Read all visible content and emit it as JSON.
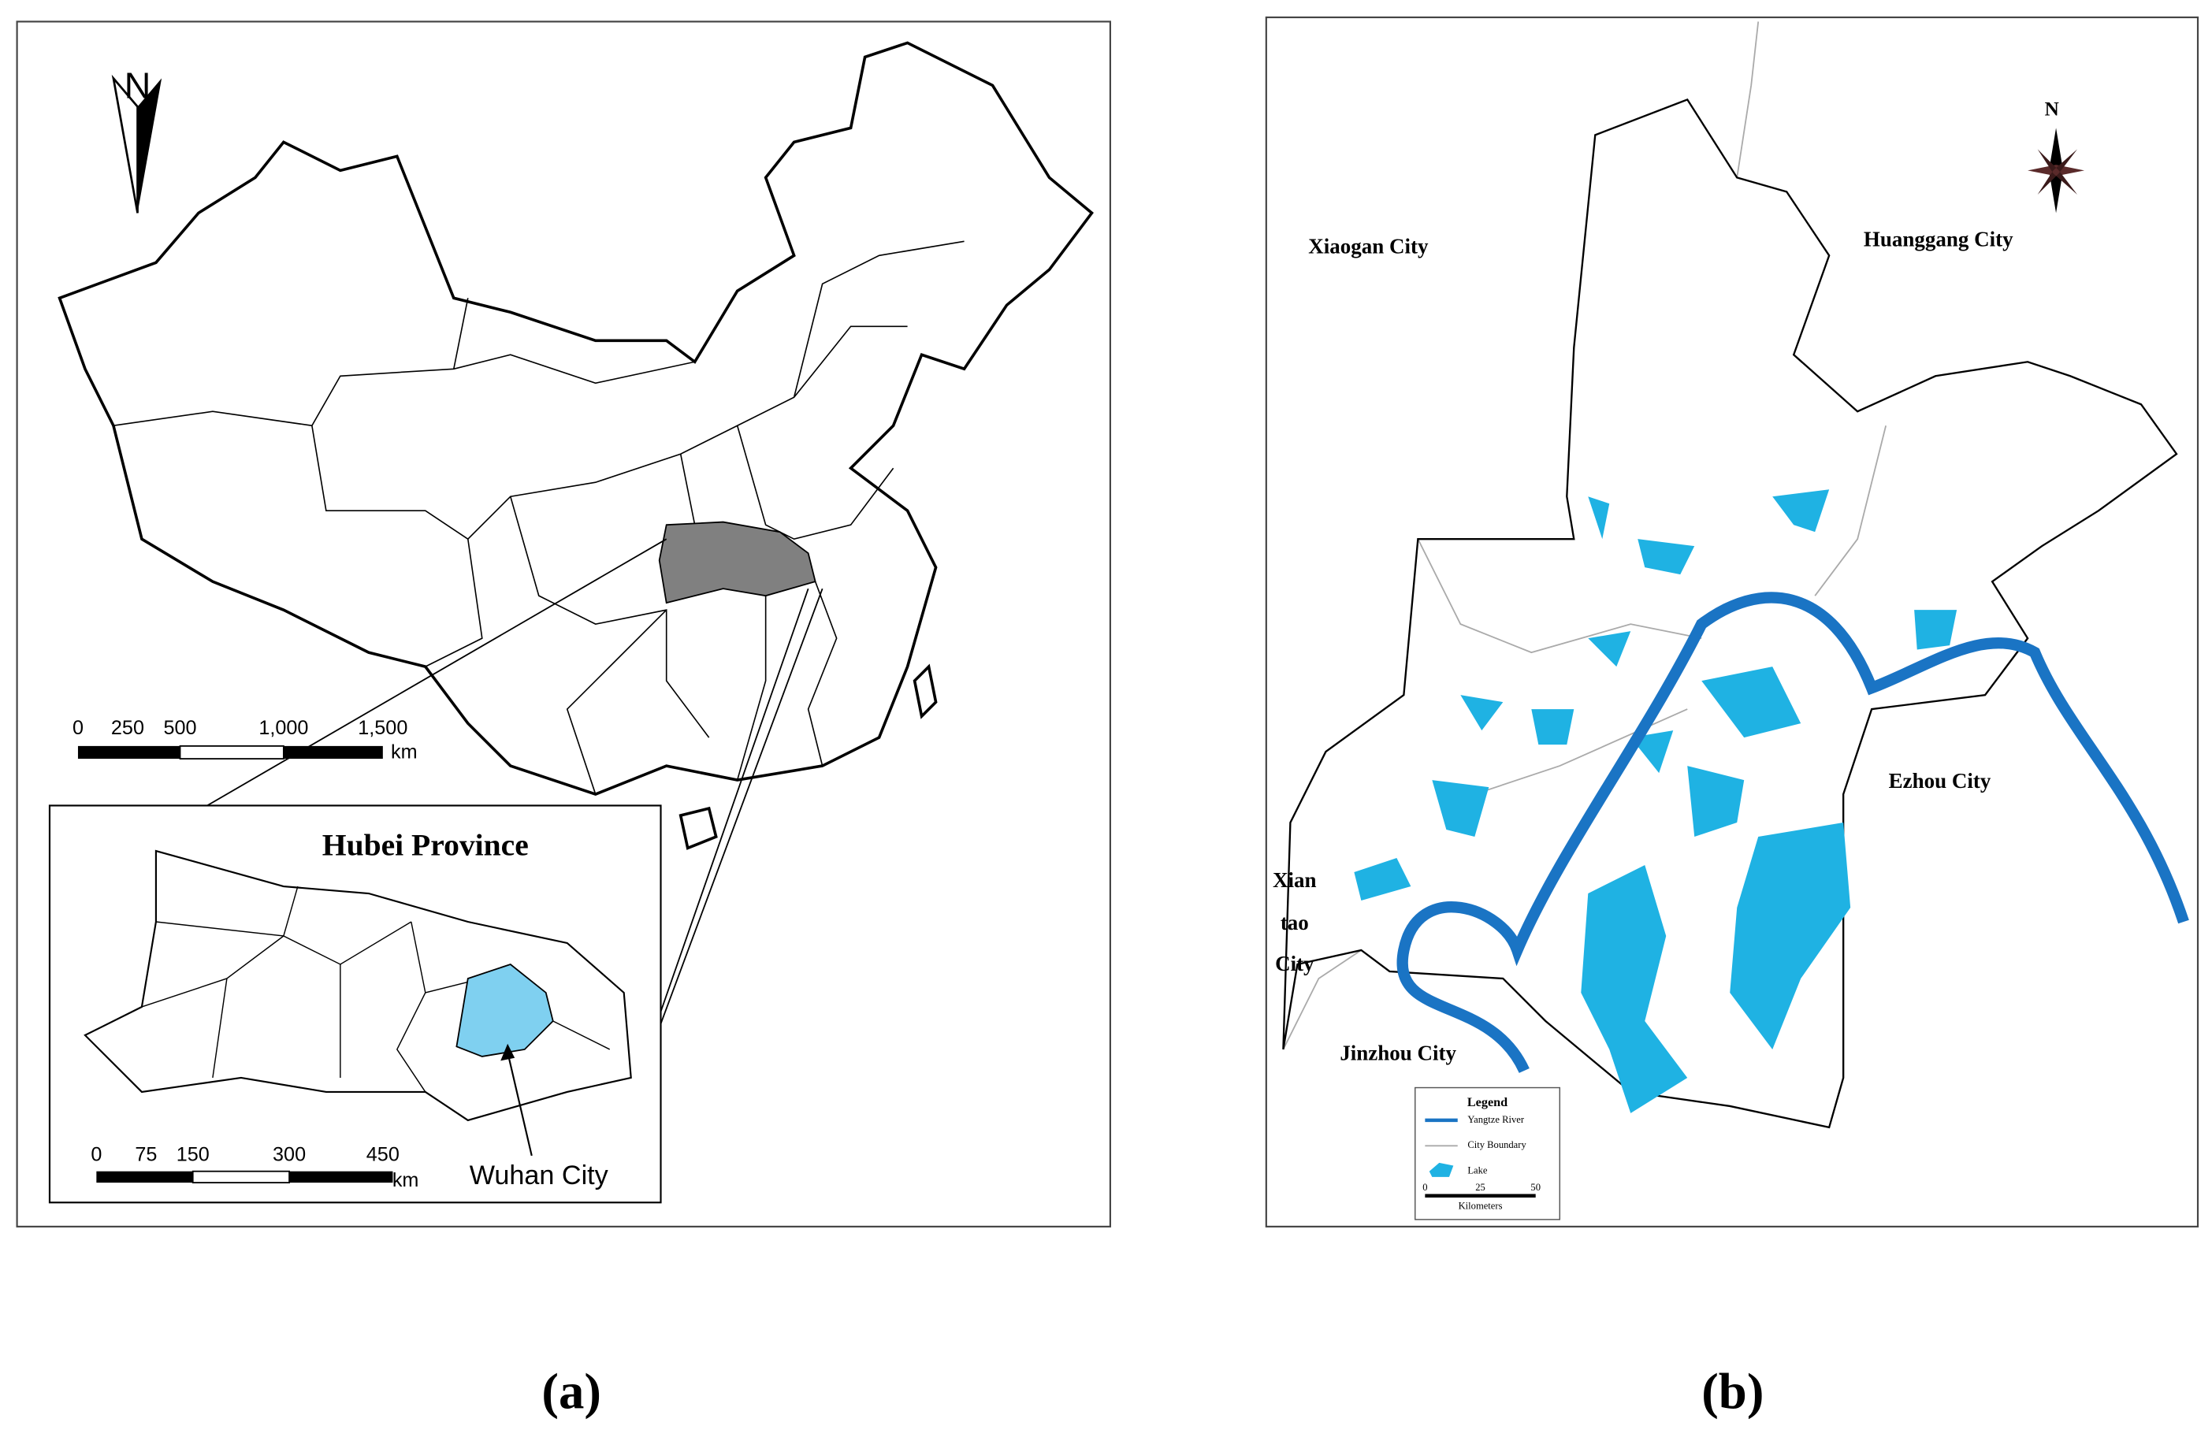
{
  "panel_a": {
    "north": "N",
    "scale_labels": [
      "0",
      "250",
      "500",
      "1,000",
      "1,500"
    ],
    "scale_unit": "km",
    "inset": {
      "title": "Hubei Province",
      "scale_labels": [
        "0",
        "75",
        "150",
        "300",
        "450"
      ],
      "scale_unit": "km",
      "label": "Wuhan City"
    },
    "caption": "(a)"
  },
  "panel_b": {
    "north": "N",
    "labels": [
      "Xiaogan City",
      "Huanggang City",
      "Ezhou City",
      "Xian",
      "tao",
      "City",
      "Jinzhou City"
    ],
    "legend": {
      "title": "Legend",
      "items": [
        "Yangtze River",
        "City Boundary",
        "Lake"
      ],
      "scale_labels": [
        "0",
        "25",
        "50"
      ],
      "scale_unit": "Kilometers"
    },
    "caption": "(b)"
  }
}
